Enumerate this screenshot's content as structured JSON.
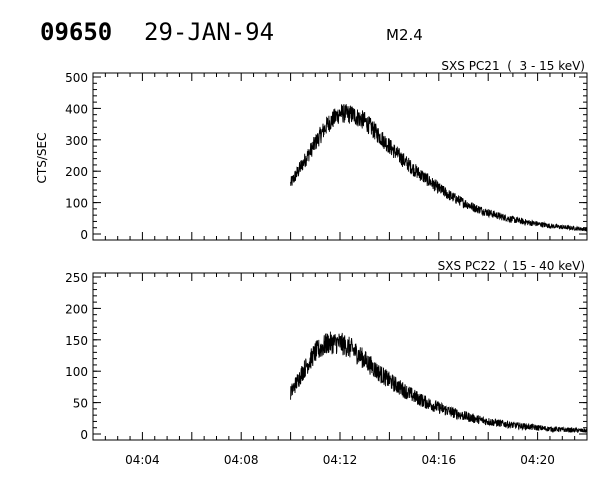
{
  "header": {
    "event_id": "09650",
    "date": "29-JAN-94",
    "flare_class": "M2.4"
  },
  "chart_data": [
    {
      "type": "line",
      "title": "SXS PC21  (  3 - 15 keV)",
      "ylabel": "CTS/SEC",
      "xlabel": "",
      "xlim": [
        "04:02",
        "04:22"
      ],
      "ylim": [
        0,
        500
      ],
      "yticks": [
        0,
        100,
        200,
        300,
        400,
        500
      ],
      "yticklabels": [
        "0",
        "100",
        "200",
        "300",
        "400",
        "500"
      ],
      "x_tick_labels_shown": false,
      "data_start": "04:10",
      "data_end": "04:22",
      "series": [
        {
          "x": [
            "04:10",
            "04:10.5",
            "04:11",
            "04:11.5",
            "04:12",
            "04:12.5",
            "04:13",
            "04:13.5",
            "04:14",
            "04:14.5",
            "04:15",
            "04:15.5",
            "04:16",
            "04:16.5",
            "04:17",
            "04:17.5",
            "04:18",
            "04:18.5",
            "04:19",
            "04:19.5",
            "04:20",
            "04:20.5",
            "04:21",
            "04:21.5",
            "04:22"
          ],
          "y": [
            160,
            225,
            290,
            350,
            385,
            380,
            360,
            320,
            280,
            240,
            205,
            175,
            145,
            120,
            100,
            82,
            68,
            56,
            46,
            38,
            32,
            26,
            22,
            18,
            15
          ]
        }
      ]
    },
    {
      "type": "line",
      "title": "SXS PC22  ( 15 - 40 keV)",
      "ylabel": "",
      "xlabel": "",
      "xlim": [
        "04:02",
        "04:22"
      ],
      "ylim": [
        0,
        250
      ],
      "yticks": [
        0,
        50,
        100,
        150,
        200,
        250
      ],
      "yticklabels": [
        "0",
        "50",
        "100",
        "150",
        "200",
        "250"
      ],
      "xticks": [
        "04:04",
        "04:08",
        "04:12",
        "04:16",
        "04:20"
      ],
      "data_start": "04:10",
      "data_end": "04:22",
      "series": [
        {
          "x": [
            "04:10",
            "04:10.5",
            "04:11",
            "04:11.5",
            "04:12",
            "04:12.5",
            "04:13",
            "04:13.5",
            "04:14",
            "04:14.5",
            "04:15",
            "04:15.5",
            "04:16",
            "04:16.5",
            "04:17",
            "04:17.5",
            "04:18",
            "04:18.5",
            "04:19",
            "04:19.5",
            "04:20",
            "04:20.5",
            "04:21",
            "04:21.5",
            "04:22"
          ],
          "y": [
            65,
            100,
            130,
            145,
            145,
            135,
            118,
            100,
            85,
            72,
            60,
            50,
            42,
            35,
            29,
            24,
            20,
            17,
            14,
            12,
            10,
            8,
            7,
            6,
            5
          ]
        }
      ]
    }
  ]
}
